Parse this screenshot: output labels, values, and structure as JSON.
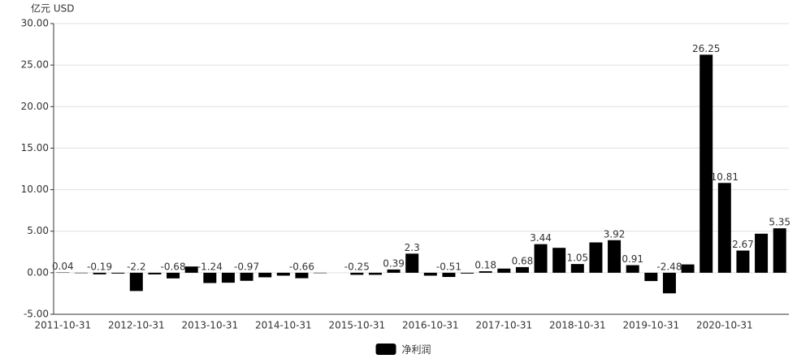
{
  "chart_data": {
    "type": "bar",
    "y_axis_label": "亿元  USD",
    "categories": [
      "2011-10-31",
      null,
      null,
      null,
      "2012-10-31",
      null,
      null,
      null,
      "2013-10-31",
      null,
      null,
      null,
      "2014-10-31",
      null,
      null,
      null,
      "2015-10-31",
      null,
      null,
      null,
      "2016-10-31",
      null,
      null,
      null,
      "2017-10-31",
      null,
      null,
      null,
      "2018-10-31",
      null,
      null,
      null,
      "2019-10-31",
      null,
      null,
      null,
      "2020-10-31",
      null,
      null,
      null
    ],
    "series": [
      {
        "name": "净利润",
        "color": "#000000",
        "values": [
          0.04,
          -0.05,
          -0.19,
          -0.1,
          -2.2,
          -0.2,
          -0.68,
          0.75,
          -1.24,
          -1.2,
          -0.97,
          -0.55,
          -0.35,
          -0.66,
          -0.05,
          0,
          -0.25,
          -0.25,
          0.39,
          2.3,
          -0.35,
          -0.51,
          -0.1,
          0.18,
          0.5,
          0.68,
          3.44,
          3.0,
          1.05,
          3.65,
          3.92,
          0.91,
          -1.0,
          -2.48,
          1.0,
          26.25,
          10.81,
          2.67,
          4.7,
          5.35
        ],
        "value_labels": [
          "0.04",
          null,
          "-0.19",
          null,
          "-2.2",
          null,
          "-0.68",
          null,
          "-1.24",
          null,
          "-0.97",
          null,
          null,
          "-0.66",
          null,
          null,
          "-0.25",
          null,
          "0.39",
          "2.3",
          null,
          "-0.51",
          null,
          "0.18",
          null,
          "0.68",
          "3.44",
          null,
          "1.05",
          null,
          "3.92",
          "0.91",
          null,
          "-2.48",
          null,
          "26.25",
          "10.81",
          "2.67",
          null,
          "5.35"
        ]
      }
    ],
    "ylim": [
      -5,
      30
    ],
    "yticks": [
      {
        "value": -5,
        "label": "-5.00"
      },
      {
        "value": 0,
        "label": "0.00"
      },
      {
        "value": 5,
        "label": "5.00"
      },
      {
        "value": 10,
        "label": "10.00"
      },
      {
        "value": 15,
        "label": "15.00"
      },
      {
        "value": 20,
        "label": "20.00"
      },
      {
        "value": 25,
        "label": "25.00"
      },
      {
        "value": 30,
        "label": "30.00"
      }
    ],
    "grid": true
  }
}
